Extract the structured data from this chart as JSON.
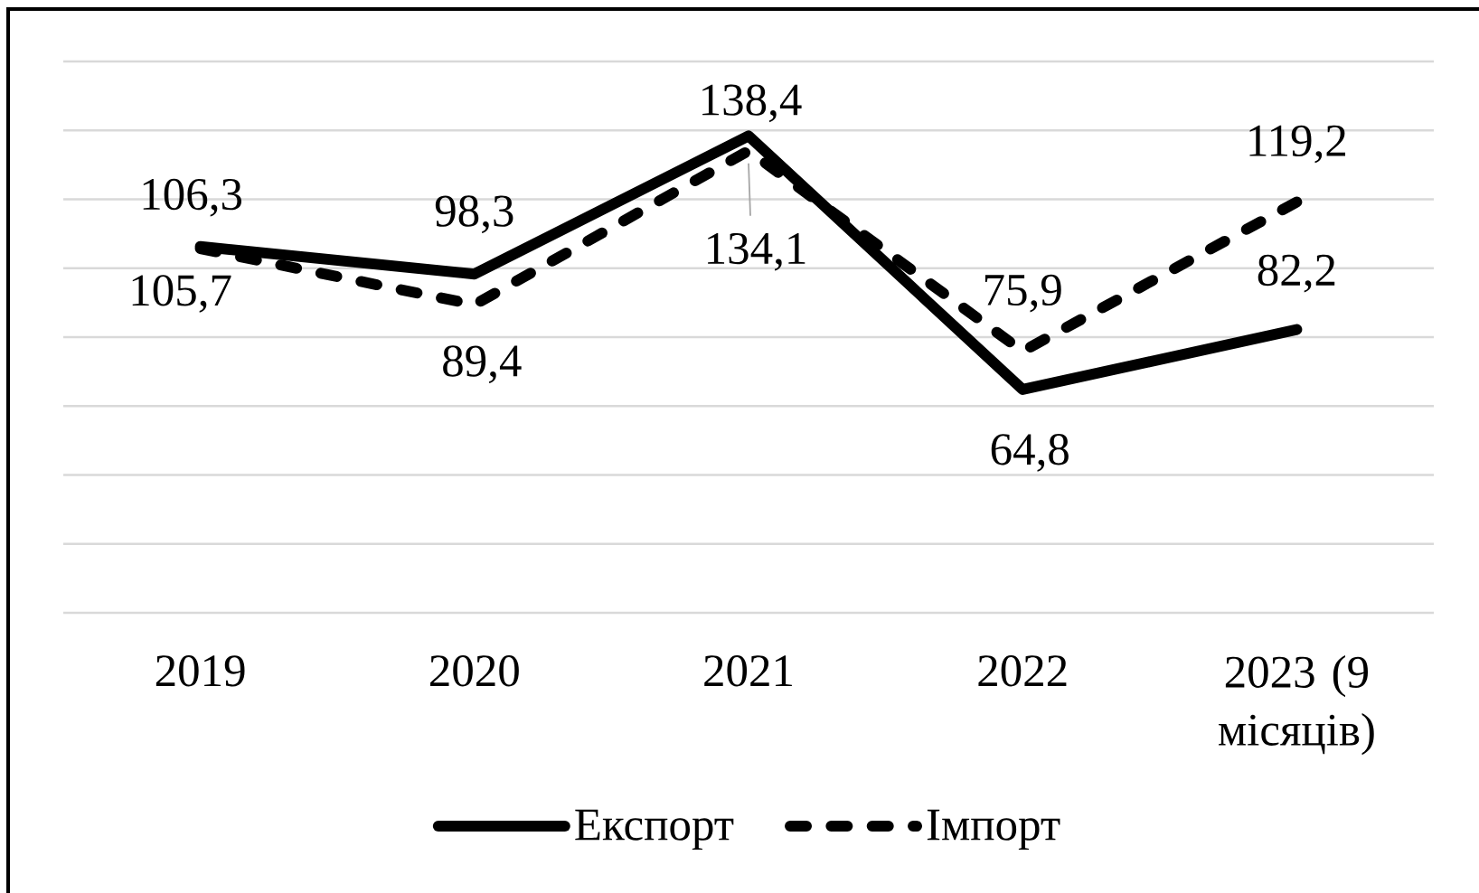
{
  "chart_data": {
    "type": "line",
    "categories": [
      "2019",
      "2020",
      "2021",
      "2022",
      "2023 (9 місяців)"
    ],
    "series": [
      {
        "name": "Експорт",
        "color": "#000000",
        "line_style": "solid",
        "values": [
          106.3,
          98.3,
          138.4,
          64.8,
          82.2
        ],
        "value_labels": [
          "106,3",
          "98,3",
          "138,4",
          "64,8",
          "82,2"
        ]
      },
      {
        "name": "Імпорт",
        "color": "#000000",
        "line_style": "dashed",
        "values": [
          105.7,
          89.4,
          134.1,
          75.9,
          119.2
        ],
        "value_labels": [
          "105,7",
          "89,4",
          "134,1",
          "75,9",
          "119,2"
        ]
      }
    ],
    "tick_labels": "x",
    "grid": "y",
    "legend": "bottom",
    "marker": "none"
  }
}
